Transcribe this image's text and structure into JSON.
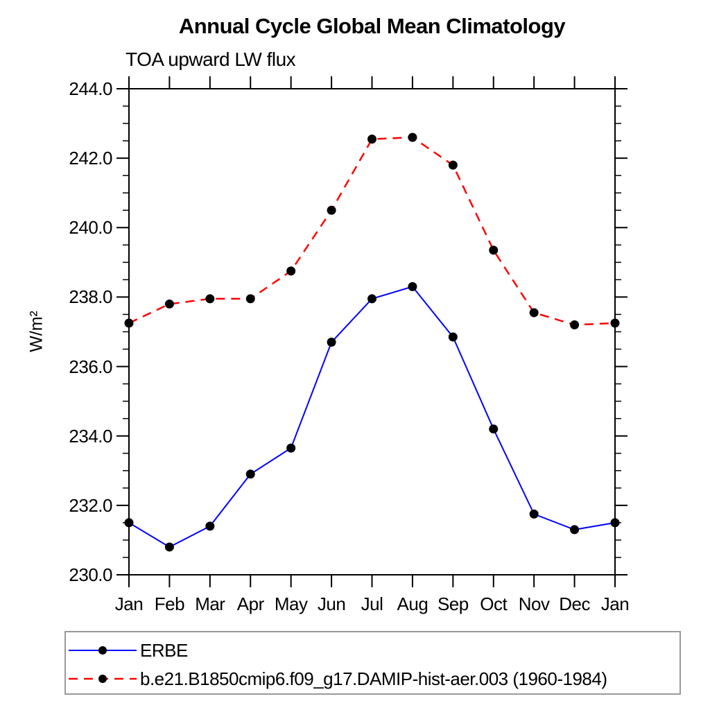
{
  "header": {
    "title": "Annual Cycle Global Mean Climatology",
    "subtitle": "TOA upward LW flux"
  },
  "chart_data": {
    "type": "line",
    "title": "Annual Cycle Global Mean Climatology",
    "subtitle": "TOA upward LW flux",
    "xlabel": "",
    "ylabel": "W/m²",
    "categories": [
      "Jan",
      "Feb",
      "Mar",
      "Apr",
      "May",
      "Jun",
      "Jul",
      "Aug",
      "Sep",
      "Oct",
      "Nov",
      "Dec",
      "Jan"
    ],
    "ylim": [
      230.0,
      244.0
    ],
    "ytick_labels": [
      "230.0",
      "232.0",
      "234.0",
      "236.0",
      "238.0",
      "240.0",
      "242.0",
      "244.0"
    ],
    "ytick_values": [
      230.0,
      232.0,
      234.0,
      236.0,
      238.0,
      240.0,
      242.0,
      244.0
    ],
    "minor_tick_interval": 0.5,
    "grid": false,
    "legend_position": "bottom-left",
    "frame_color": "#000000",
    "marker": "filled-circle",
    "marker_color": "#000000",
    "series": [
      {
        "name": "ERBE",
        "color": "#0000ff",
        "line_style": "solid",
        "values": [
          231.5,
          230.8,
          231.4,
          232.9,
          233.65,
          236.7,
          237.95,
          238.3,
          236.85,
          234.2,
          231.75,
          231.3,
          231.5
        ]
      },
      {
        "name": "b.e21.B1850cmip6.f09_g17.DAMIP-hist-aer.003 (1960-1984)",
        "color": "#ff0000",
        "line_style": "dashed",
        "values": [
          237.25,
          237.8,
          237.95,
          237.95,
          238.75,
          240.5,
          242.55,
          242.6,
          241.8,
          239.35,
          237.55,
          237.2,
          237.25
        ]
      }
    ]
  }
}
